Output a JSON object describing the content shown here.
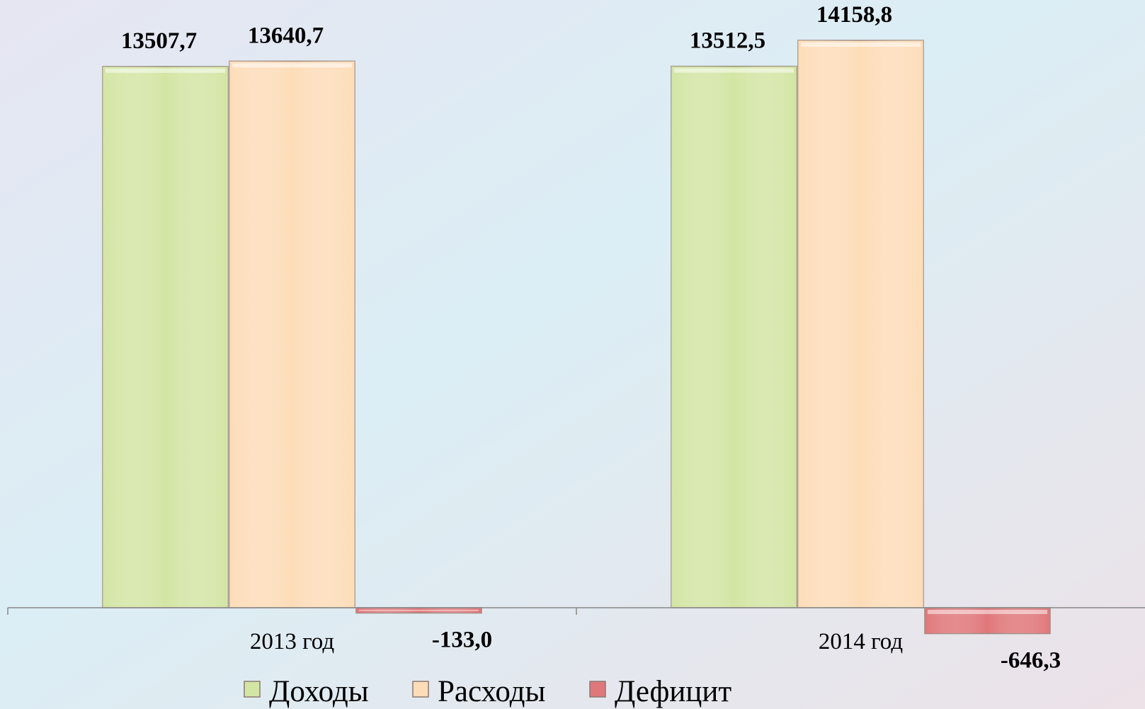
{
  "chart_data": {
    "type": "bar",
    "categories": [
      "2013 год",
      "2014 год"
    ],
    "series": [
      {
        "name": "Доходы",
        "color": "#d3e5a4",
        "values": [
          13507.7,
          13512.5
        ],
        "value_labels": [
          "13507,7",
          "13512,5"
        ]
      },
      {
        "name": "Расходы",
        "color": "#fddcb8",
        "values": [
          13640.7,
          14158.8
        ],
        "value_labels": [
          "13640,7",
          "14158,8"
        ]
      },
      {
        "name": "Дефицит",
        "color": "#e0777a",
        "values": [
          -133.0,
          -646.3
        ],
        "value_labels": [
          "-133,0",
          "-646,3"
        ]
      }
    ],
    "legend": "bottom"
  }
}
